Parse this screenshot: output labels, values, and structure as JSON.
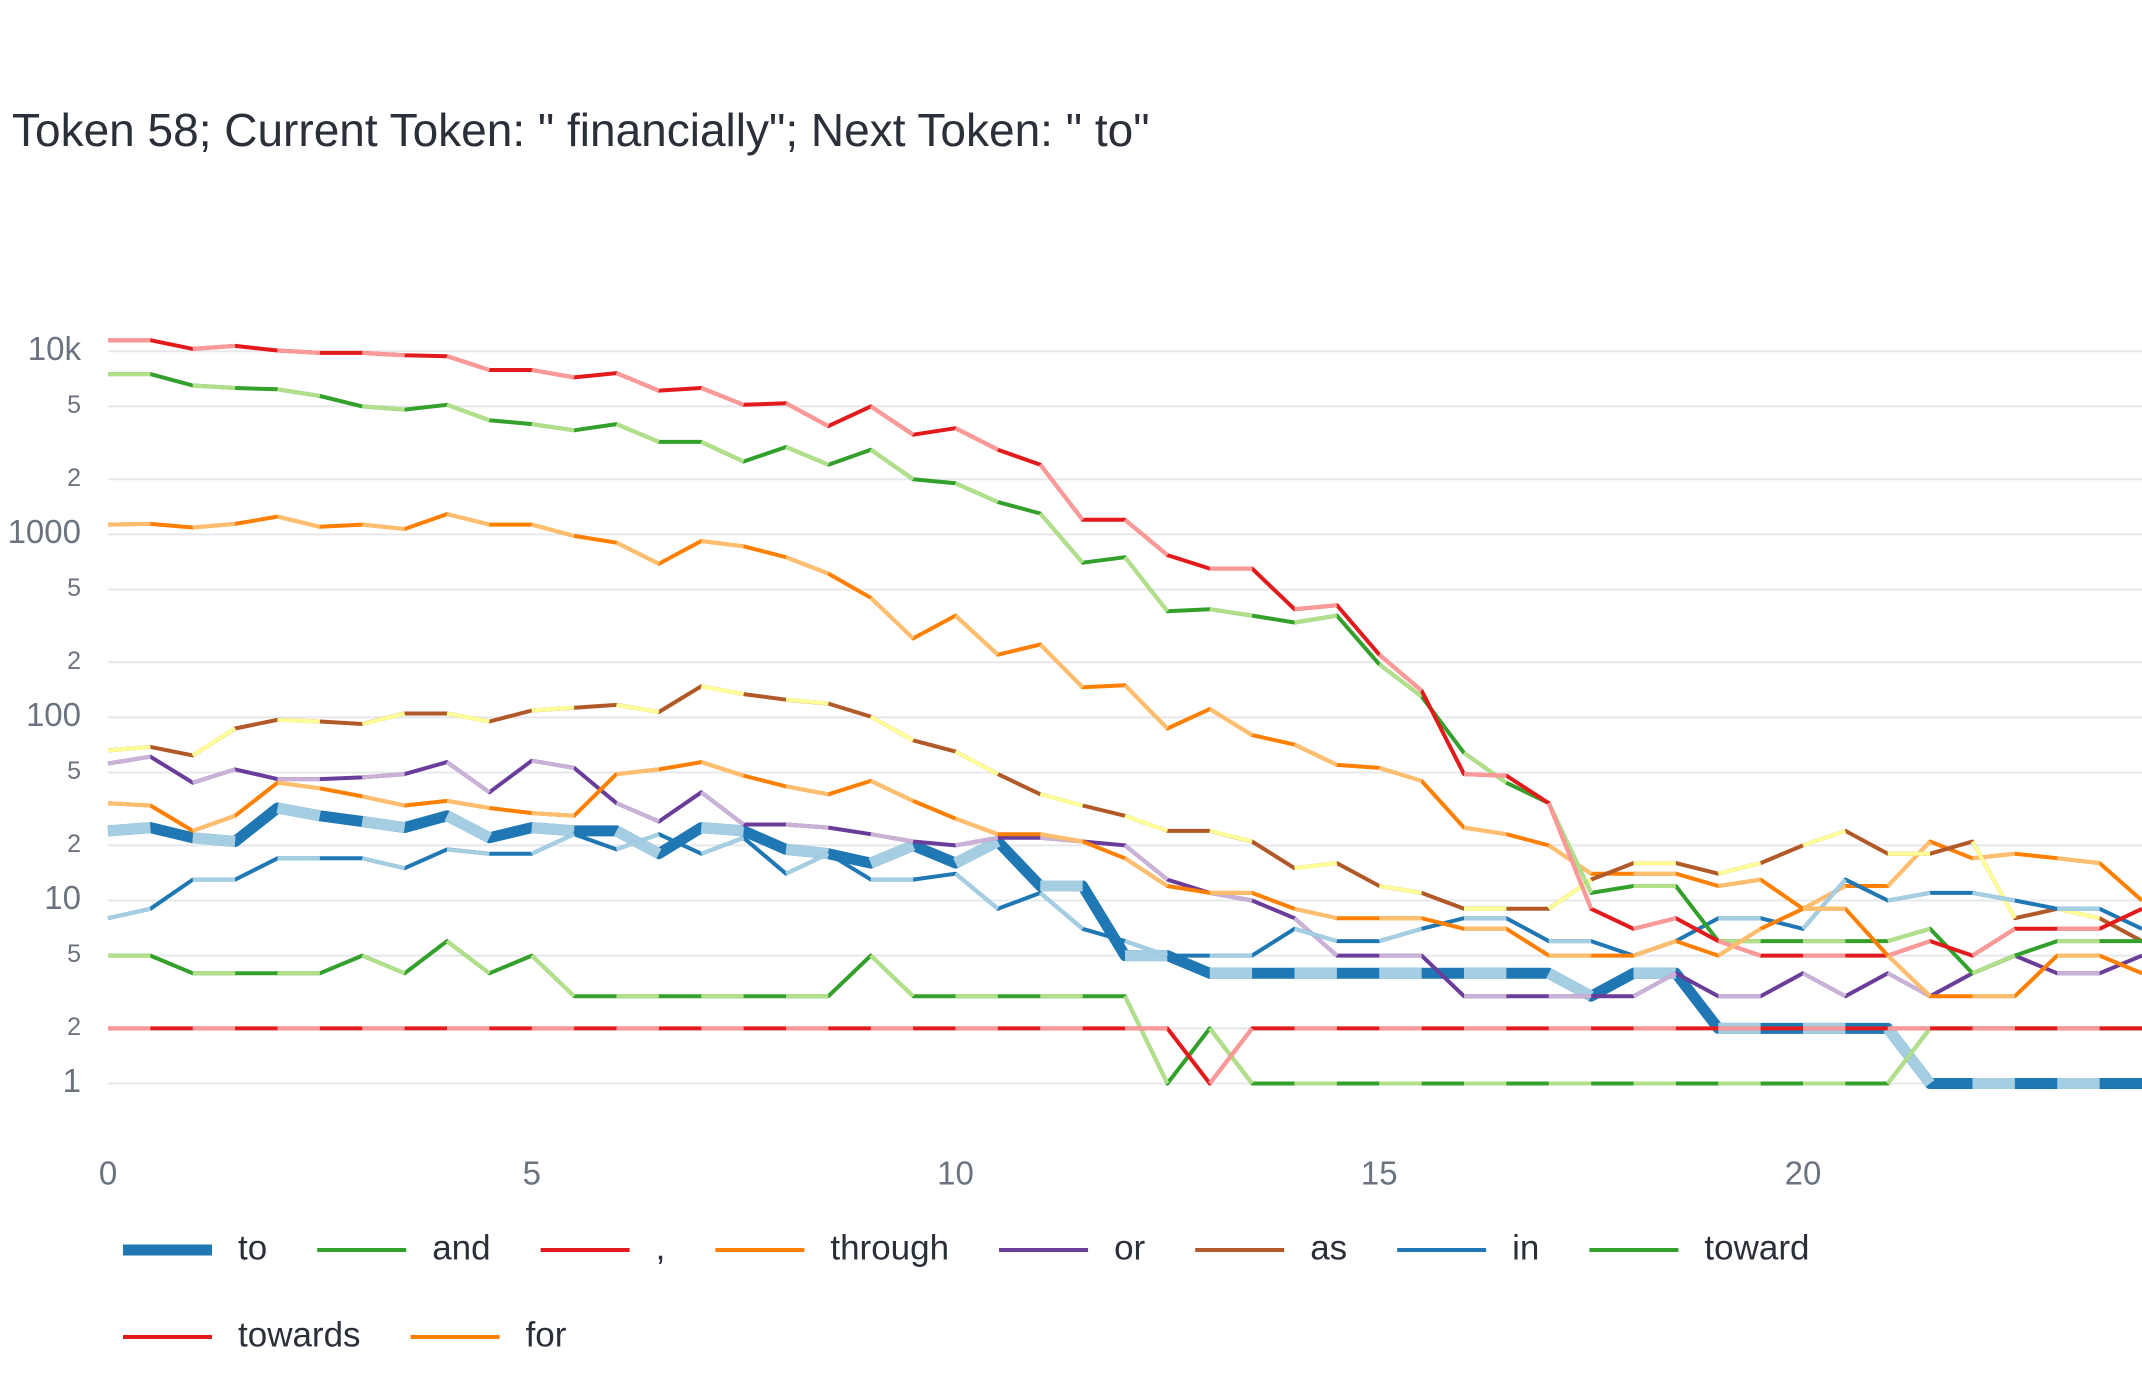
{
  "chart_data": {
    "type": "line",
    "title": "Token 58; Current Token: \" financially\"; Next Token: \" to\"",
    "x": [
      0,
      0.5,
      1,
      1.5,
      2,
      2.5,
      3,
      3.5,
      4,
      4.5,
      5,
      5.5,
      6,
      6.5,
      7,
      7.5,
      8,
      8.5,
      9,
      9.5,
      10,
      10.5,
      11,
      11.5,
      12,
      12.5,
      13,
      13.5,
      14,
      14.5,
      15,
      15.5,
      16,
      16.5,
      17,
      17.5,
      18,
      18.5,
      19,
      19.5,
      20,
      20.5,
      21,
      21.5,
      22,
      22.5,
      23,
      23.5,
      24
    ],
    "xlim": [
      0,
      24
    ],
    "xticks": [
      0,
      5,
      10,
      15,
      20
    ],
    "ylim": [
      0.53,
      13400
    ],
    "log_y": true,
    "grid": true,
    "yticks": [
      1,
      2,
      5,
      10,
      {
        "value": 20,
        "label": "2"
      },
      {
        "value": 50,
        "label": "5"
      },
      100,
      {
        "value": 200,
        "label": "2"
      },
      {
        "value": 500,
        "label": "5"
      },
      1000,
      {
        "value": 2000,
        "label": "2"
      },
      {
        "value": 5000,
        "label": "5"
      },
      {
        "value": 10000,
        "label": "10k"
      }
    ],
    "series": [
      {
        "name": "to",
        "color": "#1f78b4",
        "light_color": "#a6cee3",
        "width": 11,
        "values": [
          24,
          25,
          22,
          21,
          32,
          29,
          27,
          25,
          29,
          22,
          25,
          24,
          24,
          18,
          25,
          24,
          19,
          18,
          16,
          20,
          16,
          21,
          12,
          12,
          5,
          5,
          4,
          4,
          4,
          4,
          4,
          4,
          4,
          4,
          4,
          3,
          4,
          4,
          2,
          2,
          2,
          2,
          2,
          1,
          1,
          1,
          1,
          1,
          1
        ]
      },
      {
        "name": "and",
        "color": "#33a02c",
        "light_color": "#b2df8a",
        "width": 4,
        "values": [
          5,
          5,
          4,
          4,
          4,
          4,
          5,
          4,
          6,
          4,
          5,
          3,
          3,
          3,
          3,
          3,
          3,
          3,
          5,
          3,
          3,
          3,
          3,
          3,
          3,
          1,
          2,
          1,
          1,
          1,
          1,
          1,
          1,
          1,
          1,
          1,
          1,
          1,
          1,
          1,
          1,
          1,
          1,
          2,
          2,
          2,
          2,
          2,
          2
        ]
      },
      {
        "name": ",",
        "color": "#e31a1c",
        "light_color": "#fb9a99",
        "width": 4,
        "values": [
          2,
          2,
          2,
          2,
          2,
          2,
          2,
          2,
          2,
          2,
          2,
          2,
          2,
          2,
          2,
          2,
          2,
          2,
          2,
          2,
          2,
          2,
          2,
          2,
          2,
          2,
          1,
          2,
          2,
          2,
          2,
          2,
          2,
          2,
          2,
          2,
          2,
          2,
          2,
          2,
          2,
          2,
          2,
          2,
          2,
          2,
          2,
          2,
          2
        ]
      },
      {
        "name": "through",
        "color": "#ff7f00",
        "light_color": "#fdbf6f",
        "width": 4,
        "values": [
          1130,
          1140,
          1090,
          1140,
          1250,
          1100,
          1130,
          1070,
          1290,
          1130,
          1130,
          980,
          900,
          690,
          920,
          860,
          750,
          610,
          450,
          270,
          360,
          220,
          250,
          146,
          150,
          87,
          111,
          80,
          71,
          55,
          53,
          45,
          25,
          23,
          20,
          14,
          14,
          14,
          12,
          13,
          9,
          12,
          12,
          21,
          17,
          18,
          17,
          16,
          10
        ]
      },
      {
        "name": "or",
        "color": "#6a3d9a",
        "light_color": "#cab2d6",
        "width": 4,
        "values": [
          56,
          61,
          44,
          52,
          46,
          46,
          47,
          49,
          57,
          39,
          58,
          53,
          34,
          27,
          39,
          26,
          26,
          25,
          23,
          21,
          20,
          22,
          22,
          21,
          20,
          13,
          11,
          10,
          8,
          5,
          5,
          5,
          3,
          3,
          3,
          3,
          3,
          4,
          3,
          3,
          4,
          3,
          4,
          3,
          4,
          5,
          4,
          4,
          5
        ]
      },
      {
        "name": "as",
        "color": "#b15928",
        "light_color": "#ffff99",
        "width": 4,
        "values": [
          66,
          69,
          62,
          87,
          97,
          95,
          92,
          105,
          105,
          95,
          109,
          113,
          117,
          107,
          148,
          134,
          125,
          119,
          101,
          75,
          65,
          49,
          38,
          33,
          29,
          24,
          24,
          21,
          15,
          16,
          12,
          11,
          9,
          9,
          9,
          13,
          16,
          16,
          14,
          16,
          20,
          24,
          18,
          18,
          21,
          8,
          9,
          8,
          6
        ]
      },
      {
        "name": "in",
        "color": "#1f78b4",
        "light_color": "#a6cee3",
        "width": 4,
        "values": [
          8,
          9,
          13,
          13,
          17,
          17,
          17,
          15,
          19,
          18,
          18,
          23,
          19,
          23,
          18,
          22,
          14,
          18,
          13,
          13,
          14,
          9,
          11,
          7,
          6,
          5,
          5,
          5,
          7,
          6,
          6,
          7,
          8,
          8,
          6,
          6,
          5,
          6,
          8,
          8,
          7,
          13,
          10,
          11,
          11,
          10,
          9,
          9,
          7
        ]
      },
      {
        "name": "toward",
        "color": "#33a02c",
        "light_color": "#b2df8a",
        "width": 4,
        "values": [
          7500,
          7500,
          6500,
          6300,
          6200,
          5700,
          5000,
          4800,
          5100,
          4200,
          4000,
          3700,
          4000,
          3200,
          3200,
          2500,
          3000,
          2400,
          2900,
          2000,
          1900,
          1500,
          1300,
          700,
          750,
          380,
          390,
          360,
          330,
          360,
          195,
          130,
          64,
          44,
          34,
          11,
          12,
          12,
          6,
          6,
          6,
          6,
          6,
          7,
          4,
          5,
          6,
          6,
          6
        ]
      },
      {
        "name": "towards",
        "color": "#e31a1c",
        "light_color": "#fb9a99",
        "width": 4,
        "values": [
          11500,
          11500,
          10300,
          10700,
          10100,
          9800,
          9800,
          9500,
          9400,
          7900,
          7900,
          7200,
          7600,
          6100,
          6300,
          5100,
          5200,
          3900,
          5000,
          3500,
          3800,
          2900,
          2400,
          1200,
          1200,
          770,
          650,
          650,
          390,
          410,
          220,
          140,
          49,
          48,
          34,
          9,
          7,
          8,
          6,
          5,
          5,
          5,
          5,
          6,
          5,
          7,
          7,
          7,
          9
        ]
      },
      {
        "name": "for",
        "color": "#ff7f00",
        "light_color": "#fdbf6f",
        "width": 4,
        "values": [
          34,
          33,
          24,
          29,
          44,
          41,
          37,
          33,
          35,
          32,
          30,
          29,
          49,
          52,
          57,
          48,
          42,
          38,
          45,
          35,
          28,
          23,
          23,
          21,
          17,
          12,
          11,
          11,
          9,
          8,
          8,
          8,
          7,
          7,
          5,
          5,
          5,
          6,
          5,
          7,
          9,
          9,
          5,
          3,
          3,
          3,
          5,
          5,
          4
        ]
      }
    ]
  }
}
